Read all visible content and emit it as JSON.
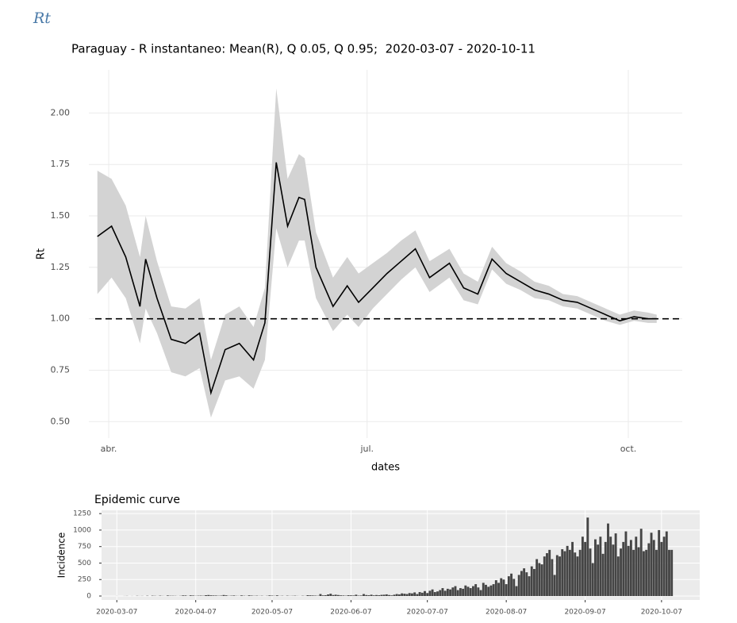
{
  "heading": "Rt",
  "chart_data": [
    {
      "type": "line",
      "title": "Paraguay - R instantaneo: Mean(R), Q 0.05, Q 0.95;  2020-03-07 - 2020-10-11",
      "x_label": "dates",
      "y_label": "Rt",
      "x": [
        "2020-03-28",
        "2020-04-02",
        "2020-04-07",
        "2020-04-12",
        "2020-04-14",
        "2020-04-18",
        "2020-04-23",
        "2020-04-28",
        "2020-05-03",
        "2020-05-07",
        "2020-05-12",
        "2020-05-17",
        "2020-05-22",
        "2020-05-26",
        "2020-05-30",
        "2020-06-03",
        "2020-06-07",
        "2020-06-09",
        "2020-06-13",
        "2020-06-19",
        "2020-06-24",
        "2020-06-28",
        "2020-07-03",
        "2020-07-08",
        "2020-07-13",
        "2020-07-18",
        "2020-07-23",
        "2020-07-30",
        "2020-08-04",
        "2020-08-09",
        "2020-08-14",
        "2020-08-19",
        "2020-08-24",
        "2020-08-29",
        "2020-09-03",
        "2020-09-08",
        "2020-09-13",
        "2020-09-18",
        "2020-09-23",
        "2020-09-28",
        "2020-10-03",
        "2020-10-08",
        "2020-10-11"
      ],
      "values": [
        1.4,
        1.45,
        1.3,
        1.06,
        1.29,
        1.1,
        0.9,
        0.88,
        0.93,
        0.64,
        0.85,
        0.88,
        0.8,
        0.98,
        1.76,
        1.45,
        1.59,
        1.58,
        1.25,
        1.06,
        1.16,
        1.08,
        1.15,
        1.22,
        1.28,
        1.34,
        1.2,
        1.27,
        1.15,
        1.12,
        1.29,
        1.22,
        1.18,
        1.14,
        1.12,
        1.09,
        1.08,
        1.05,
        1.02,
        0.99,
        1.01,
        1.0,
        1.0
      ],
      "lower": [
        1.12,
        1.2,
        1.1,
        0.88,
        1.05,
        0.93,
        0.74,
        0.72,
        0.76,
        0.52,
        0.7,
        0.72,
        0.66,
        0.8,
        1.44,
        1.25,
        1.38,
        1.38,
        1.1,
        0.94,
        1.02,
        0.96,
        1.05,
        1.12,
        1.19,
        1.25,
        1.13,
        1.2,
        1.09,
        1.07,
        1.24,
        1.17,
        1.14,
        1.1,
        1.09,
        1.06,
        1.05,
        1.02,
        0.99,
        0.97,
        0.99,
        0.98,
        0.98
      ],
      "upper": [
        1.72,
        1.68,
        1.55,
        1.3,
        1.5,
        1.28,
        1.06,
        1.05,
        1.1,
        0.8,
        1.02,
        1.06,
        0.96,
        1.15,
        2.12,
        1.68,
        1.8,
        1.78,
        1.42,
        1.2,
        1.3,
        1.22,
        1.27,
        1.32,
        1.38,
        1.43,
        1.28,
        1.34,
        1.22,
        1.18,
        1.35,
        1.27,
        1.23,
        1.18,
        1.16,
        1.12,
        1.11,
        1.08,
        1.05,
        1.02,
        1.04,
        1.03,
        1.02
      ],
      "color": "#000000",
      "band_color": "#d3d3d3",
      "hline": 1,
      "xlim": [
        "2020-03-25",
        "2020-10-20"
      ],
      "xticks": [
        {
          "value": "2020-04-01",
          "label": "abr."
        },
        {
          "value": "2020-07-01",
          "label": "jul."
        },
        {
          "value": "2020-10-01",
          "label": "oct."
        }
      ],
      "ylim": [
        0.42,
        2.21
      ],
      "yticks": [
        {
          "value": 0.5,
          "label": "0.50"
        },
        {
          "value": 0.75,
          "label": "0.75"
        },
        {
          "value": 1,
          "label": "1.00"
        },
        {
          "value": 1.25,
          "label": "1.25"
        },
        {
          "value": 1.5,
          "label": "1.50"
        },
        {
          "value": 1.75,
          "label": "1.75"
        },
        {
          "value": 2,
          "label": "2.00"
        }
      ],
      "grid": true
    },
    {
      "type": "bar",
      "title": "Epidemic curve",
      "y_label": "Incidence",
      "x": [
        "2020-03-07",
        "2020-03-08",
        "2020-03-09",
        "2020-03-10",
        "2020-03-11",
        "2020-03-12",
        "2020-03-13",
        "2020-03-14",
        "2020-03-15",
        "2020-03-16",
        "2020-03-17",
        "2020-03-18",
        "2020-03-19",
        "2020-03-20",
        "2020-03-21",
        "2020-03-22",
        "2020-03-23",
        "2020-03-24",
        "2020-03-25",
        "2020-03-26",
        "2020-03-27",
        "2020-03-28",
        "2020-03-29",
        "2020-03-30",
        "2020-03-31",
        "2020-04-01",
        "2020-04-02",
        "2020-04-03",
        "2020-04-04",
        "2020-04-05",
        "2020-04-06",
        "2020-04-07",
        "2020-04-08",
        "2020-04-09",
        "2020-04-10",
        "2020-04-11",
        "2020-04-12",
        "2020-04-13",
        "2020-04-14",
        "2020-04-15",
        "2020-04-16",
        "2020-04-17",
        "2020-04-18",
        "2020-04-19",
        "2020-04-20",
        "2020-04-21",
        "2020-04-22",
        "2020-04-23",
        "2020-04-24",
        "2020-04-25",
        "2020-04-26",
        "2020-04-27",
        "2020-04-28",
        "2020-04-29",
        "2020-04-30",
        "2020-05-01",
        "2020-05-02",
        "2020-05-03",
        "2020-05-04",
        "2020-05-05",
        "2020-05-06",
        "2020-05-07",
        "2020-05-08",
        "2020-05-09",
        "2020-05-10",
        "2020-05-11",
        "2020-05-12",
        "2020-05-13",
        "2020-05-14",
        "2020-05-15",
        "2020-05-16",
        "2020-05-17",
        "2020-05-18",
        "2020-05-19",
        "2020-05-20",
        "2020-05-21",
        "2020-05-22",
        "2020-05-23",
        "2020-05-24",
        "2020-05-25",
        "2020-05-26",
        "2020-05-27",
        "2020-05-28",
        "2020-05-29",
        "2020-05-30",
        "2020-05-31",
        "2020-06-01",
        "2020-06-02",
        "2020-06-03",
        "2020-06-04",
        "2020-06-05",
        "2020-06-06",
        "2020-06-07",
        "2020-06-08",
        "2020-06-09",
        "2020-06-10",
        "2020-06-11",
        "2020-06-12",
        "2020-06-13",
        "2020-06-14",
        "2020-06-15",
        "2020-06-16",
        "2020-06-17",
        "2020-06-18",
        "2020-06-19",
        "2020-06-20",
        "2020-06-21",
        "2020-06-22",
        "2020-06-23",
        "2020-06-24",
        "2020-06-25",
        "2020-06-26",
        "2020-06-27",
        "2020-06-28",
        "2020-06-29",
        "2020-06-30",
        "2020-07-01",
        "2020-07-02",
        "2020-07-03",
        "2020-07-04",
        "2020-07-05",
        "2020-07-06",
        "2020-07-07",
        "2020-07-08",
        "2020-07-09",
        "2020-07-10",
        "2020-07-11",
        "2020-07-12",
        "2020-07-13",
        "2020-07-14",
        "2020-07-15",
        "2020-07-16",
        "2020-07-17",
        "2020-07-18",
        "2020-07-19",
        "2020-07-20",
        "2020-07-21",
        "2020-07-22",
        "2020-07-23",
        "2020-07-24",
        "2020-07-25",
        "2020-07-26",
        "2020-07-27",
        "2020-07-28",
        "2020-07-29",
        "2020-07-30",
        "2020-07-31",
        "2020-08-01",
        "2020-08-02",
        "2020-08-03",
        "2020-08-04",
        "2020-08-05",
        "2020-08-06",
        "2020-08-07",
        "2020-08-08",
        "2020-08-09",
        "2020-08-10",
        "2020-08-11",
        "2020-08-12",
        "2020-08-13",
        "2020-08-14",
        "2020-08-15",
        "2020-08-16",
        "2020-08-17",
        "2020-08-18",
        "2020-08-19",
        "2020-08-20",
        "2020-08-21",
        "2020-08-22",
        "2020-08-23",
        "2020-08-24",
        "2020-08-25",
        "2020-08-26",
        "2020-08-27",
        "2020-08-28",
        "2020-08-29",
        "2020-08-30",
        "2020-08-31",
        "2020-09-01",
        "2020-09-02",
        "2020-09-03",
        "2020-09-04",
        "2020-09-05",
        "2020-09-06",
        "2020-09-07",
        "2020-09-08",
        "2020-09-09",
        "2020-09-10",
        "2020-09-11",
        "2020-09-12",
        "2020-09-13",
        "2020-09-14",
        "2020-09-15",
        "2020-09-16",
        "2020-09-17",
        "2020-09-18",
        "2020-09-19",
        "2020-09-20",
        "2020-09-21",
        "2020-09-22",
        "2020-09-23",
        "2020-09-24",
        "2020-09-25",
        "2020-09-26",
        "2020-09-27",
        "2020-09-28",
        "2020-09-29",
        "2020-09-30",
        "2020-10-01",
        "2020-10-02",
        "2020-10-03",
        "2020-10-04",
        "2020-10-05",
        "2020-10-06",
        "2020-10-07",
        "2020-10-08",
        "2020-10-09",
        "2020-10-10",
        "2020-10-11"
      ],
      "values": [
        1,
        0,
        0,
        1,
        2,
        0,
        1,
        0,
        3,
        1,
        2,
        0,
        4,
        0,
        5,
        3,
        1,
        5,
        2,
        1,
        8,
        4,
        4,
        3,
        1,
        3,
        9,
        8,
        2,
        10,
        7,
        3,
        5,
        6,
        4,
        12,
        15,
        10,
        8,
        7,
        4,
        6,
        15,
        10,
        3,
        5,
        8,
        3,
        2,
        9,
        4,
        2,
        10,
        6,
        3,
        5,
        2,
        4,
        1,
        3,
        9,
        6,
        3,
        10,
        2,
        4,
        1,
        5,
        2,
        3,
        5,
        2,
        1,
        4,
        2,
        12,
        10,
        8,
        6,
        4,
        30,
        10,
        12,
        24,
        35,
        15,
        20,
        15,
        10,
        8,
        5,
        12,
        10,
        8,
        20,
        6,
        8,
        30,
        15,
        12,
        20,
        10,
        15,
        12,
        18,
        20,
        25,
        15,
        10,
        20,
        30,
        25,
        40,
        35,
        30,
        45,
        40,
        55,
        30,
        60,
        50,
        75,
        45,
        80,
        100,
        60,
        70,
        90,
        120,
        80,
        110,
        100,
        130,
        150,
        90,
        120,
        110,
        160,
        140,
        120,
        150,
        180,
        130,
        90,
        200,
        170,
        140,
        160,
        180,
        240,
        200,
        270,
        250,
        180,
        300,
        340,
        260,
        150,
        320,
        380,
        420,
        360,
        300,
        450,
        410,
        560,
        500,
        480,
        600,
        650,
        700,
        560,
        320,
        620,
        600,
        710,
        680,
        760,
        700,
        820,
        660,
        600,
        700,
        900,
        820,
        1190,
        720,
        500,
        860,
        780,
        900,
        640,
        820,
        1100,
        900,
        780,
        950,
        600,
        720,
        820,
        980,
        760,
        850,
        700,
        900,
        740,
        1020,
        680,
        700,
        800,
        960,
        850,
        700,
        1000,
        820,
        900,
        980,
        700,
        700
      ],
      "color": "#454545",
      "xlim": [
        "2020-03-01",
        "2020-10-22"
      ],
      "xticks": [
        "2020-03-07",
        "2020-04-07",
        "2020-05-07",
        "2020-06-07",
        "2020-07-07",
        "2020-08-07",
        "2020-09-07",
        "2020-10-07"
      ],
      "ylim": [
        -60,
        1300
      ],
      "yticks": [
        0,
        250,
        500,
        750,
        1000,
        1250
      ],
      "grid": true
    }
  ]
}
